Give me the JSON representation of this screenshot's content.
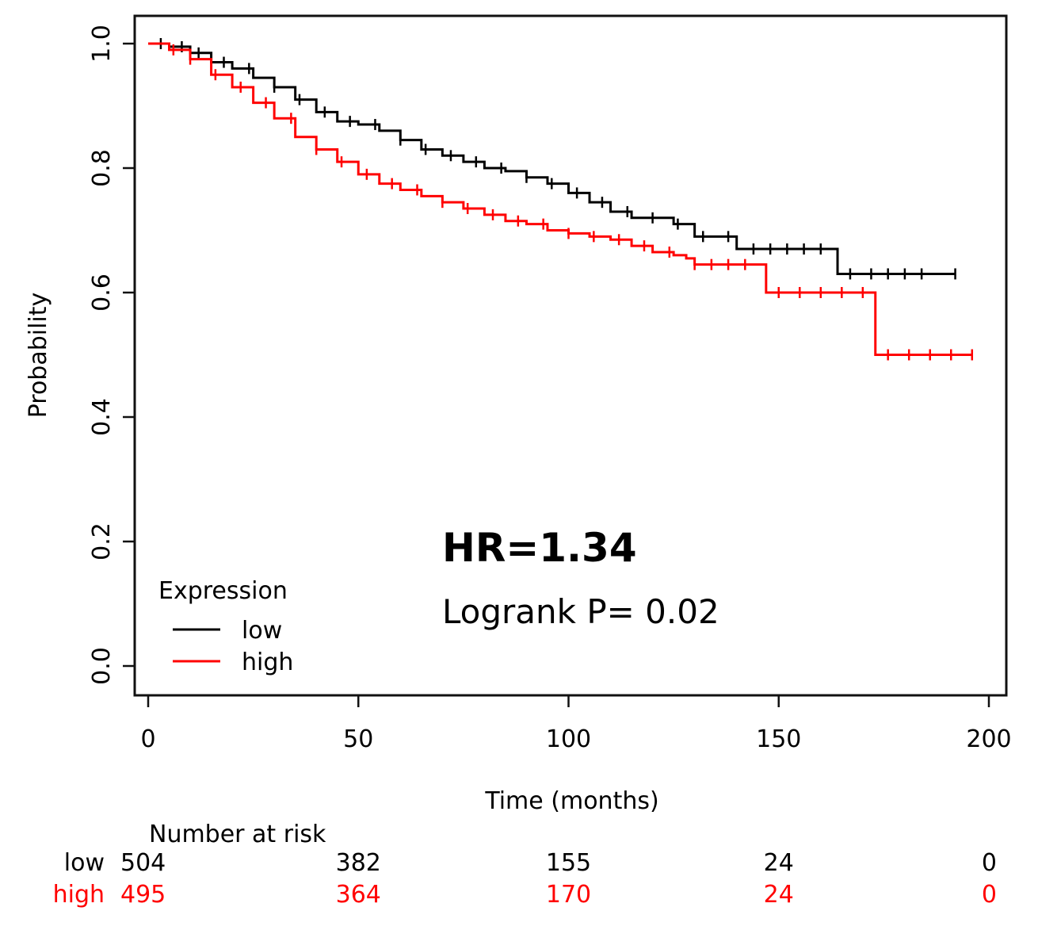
{
  "chart_data": {
    "type": "line",
    "xlabel": "Time (months)",
    "ylabel": "Probability",
    "xlim": [
      0,
      200
    ],
    "ylim": [
      0,
      1.0
    ],
    "x_ticks": [
      "0",
      "50",
      "100",
      "150",
      "200"
    ],
    "y_ticks": [
      "0.0",
      "0.2",
      "0.4",
      "0.6",
      "0.8",
      "1.0"
    ],
    "legend": {
      "title": "Expression",
      "placement": "bottom-left"
    },
    "annotations": {
      "hr": "HR=1.34",
      "logrank": "Logrank P= 0.02"
    },
    "series": [
      {
        "name": "low",
        "color": "#000000",
        "x": [
          0,
          5,
          10,
          15,
          20,
          25,
          30,
          35,
          40,
          45,
          50,
          55,
          60,
          65,
          70,
          75,
          80,
          85,
          90,
          95,
          100,
          105,
          110,
          115,
          120,
          125,
          130,
          135,
          140,
          145,
          150,
          155,
          160,
          164,
          164,
          170,
          180,
          192
        ],
        "y": [
          1.0,
          0.995,
          0.985,
          0.97,
          0.96,
          0.945,
          0.93,
          0.91,
          0.89,
          0.875,
          0.87,
          0.86,
          0.845,
          0.83,
          0.82,
          0.81,
          0.8,
          0.795,
          0.785,
          0.775,
          0.76,
          0.745,
          0.73,
          0.72,
          0.72,
          0.71,
          0.69,
          0.69,
          0.67,
          0.67,
          0.67,
          0.67,
          0.67,
          0.67,
          0.63,
          0.63,
          0.63,
          0.63
        ],
        "censor_x": [
          3,
          8,
          12,
          18,
          24,
          30,
          36,
          42,
          48,
          54,
          60,
          66,
          72,
          78,
          84,
          90,
          96,
          102,
          108,
          114,
          120,
          126,
          132,
          138,
          144,
          148,
          152,
          156,
          160,
          167,
          172,
          176,
          180,
          184,
          192
        ]
      },
      {
        "name": "high",
        "color": "#ff0000",
        "x": [
          0,
          5,
          10,
          15,
          20,
          25,
          30,
          35,
          40,
          45,
          50,
          55,
          60,
          65,
          70,
          75,
          80,
          85,
          90,
          95,
          100,
          105,
          110,
          115,
          120,
          125,
          128,
          130,
          140,
          145,
          147,
          147,
          160,
          173,
          173,
          185,
          196
        ],
        "y": [
          1.0,
          0.99,
          0.975,
          0.95,
          0.93,
          0.905,
          0.88,
          0.85,
          0.83,
          0.81,
          0.79,
          0.775,
          0.765,
          0.755,
          0.745,
          0.735,
          0.725,
          0.715,
          0.71,
          0.7,
          0.695,
          0.69,
          0.685,
          0.675,
          0.665,
          0.66,
          0.655,
          0.645,
          0.645,
          0.645,
          0.64,
          0.6,
          0.6,
          0.6,
          0.5,
          0.5,
          0.5
        ],
        "censor_x": [
          6,
          10,
          16,
          22,
          28,
          34,
          40,
          46,
          52,
          58,
          64,
          70,
          76,
          82,
          88,
          94,
          100,
          106,
          112,
          118,
          124,
          130,
          134,
          138,
          142,
          150,
          155,
          160,
          165,
          170,
          176,
          181,
          186,
          191,
          196
        ]
      }
    ],
    "number_at_risk": {
      "title": "Number at risk",
      "rows": [
        {
          "label": "low",
          "color": "#000000",
          "values": [
            "504",
            "382",
            "155",
            "24",
            "0"
          ]
        },
        {
          "label": "high",
          "color": "#ff0000",
          "values": [
            "495",
            "364",
            "170",
            "24",
            "0"
          ]
        }
      ]
    }
  }
}
